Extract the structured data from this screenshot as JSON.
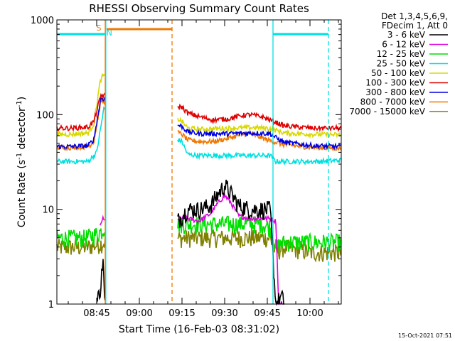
{
  "chart_data": {
    "type": "line",
    "title": "RHESSI Observing Summary Count Rates",
    "xlabel": "Start Time (16-Feb-03 08:31:02)",
    "ylabel": "Count Rate (s",
    "ylabel_sup1": "-1",
    "ylabel_mid": " detector",
    "ylabel_sup2": "-1",
    "ylabel_end": ")",
    "yscale": "log",
    "ylim": [
      1,
      1000
    ],
    "xlim_minutes": [
      0,
      100
    ],
    "x_ticks": [
      {
        "label": "08:45",
        "min": 14
      },
      {
        "label": "09:00",
        "min": 29
      },
      {
        "label": "09:15",
        "min": 44
      },
      {
        "label": "09:30",
        "min": 59
      },
      {
        "label": "09:45",
        "min": 74
      },
      {
        "label": "10:00",
        "min": 89
      }
    ],
    "y_ticks": [
      {
        "label": "1",
        "value": 1
      },
      {
        "label": "10",
        "value": 10
      },
      {
        "label": "100",
        "value": 100
      },
      {
        "label": "1000",
        "value": 1000
      }
    ],
    "header": [
      "Det 1,3,4,5,6,9,",
      "FDecim 1, Att 0"
    ],
    "legend": [
      {
        "label": "3 - 6 keV",
        "color": "#000000"
      },
      {
        "label": "6 - 12 keV",
        "color": "#e000e0"
      },
      {
        "label": "12 - 25 keV",
        "color": "#00e000"
      },
      {
        "label": "25 - 50 keV",
        "color": "#00e0e0"
      },
      {
        "label": "50 - 100 keV",
        "color": "#d8d800"
      },
      {
        "label": "100 - 300 keV",
        "color": "#e00000"
      },
      {
        "label": "300 - 800 keV",
        "color": "#0000e0"
      },
      {
        "label": "800 - 7000 keV",
        "color": "#f07800"
      },
      {
        "label": "7000 - 15000 keV",
        "color": "#808000"
      }
    ],
    "segments": [
      [
        0,
        17
      ],
      [
        42.5,
        100
      ]
    ],
    "series": [
      {
        "name": "3 - 6 keV",
        "color": "#000000",
        "points": [
          [
            14,
            1.0
          ],
          [
            15.5,
            1.6
          ],
          [
            16.2,
            3.2
          ],
          [
            16.8,
            1.0
          ],
          [
            46,
            10
          ],
          [
            50,
            10
          ],
          [
            54,
            11
          ],
          [
            57,
            15
          ],
          [
            59,
            18
          ],
          [
            61,
            15
          ],
          [
            64,
            11
          ],
          [
            68,
            10
          ],
          [
            72,
            10
          ],
          [
            75,
            10
          ],
          [
            77,
            1.0
          ],
          [
            79,
            1.2
          ],
          [
            80,
            1.0
          ]
        ]
      },
      {
        "name": "6 - 12 keV",
        "color": "#e000e0",
        "points": [
          [
            15.2,
            6.5
          ],
          [
            16,
            8
          ],
          [
            16.8,
            7.5
          ],
          [
            46,
            8
          ],
          [
            50,
            7.5
          ],
          [
            54,
            9
          ],
          [
            57,
            12
          ],
          [
            59,
            14
          ],
          [
            61,
            12
          ],
          [
            64,
            8.5
          ],
          [
            68,
            8
          ],
          [
            72,
            8
          ],
          [
            75,
            8
          ],
          [
            77,
            7.5
          ],
          [
            78,
            1.0
          ],
          [
            80,
            1.0
          ]
        ]
      },
      {
        "name": "12 - 25 keV",
        "color": "#00e000",
        "points": [
          [
            0,
            5
          ],
          [
            5,
            5
          ],
          [
            10,
            5
          ],
          [
            14,
            5.5
          ],
          [
            16,
            6
          ],
          [
            16.8,
            6.5
          ],
          [
            46,
            7
          ],
          [
            55,
            7
          ],
          [
            65,
            7
          ],
          [
            72,
            7
          ],
          [
            75,
            6.5
          ],
          [
            77,
            4
          ],
          [
            80,
            4.5
          ],
          [
            90,
            4.5
          ],
          [
            100,
            4.5
          ]
        ]
      },
      {
        "name": "25 - 50 keV",
        "color": "#00e0e0",
        "points": [
          [
            0,
            32
          ],
          [
            5,
            32
          ],
          [
            11,
            32
          ],
          [
            14,
            40
          ],
          [
            16.5,
            115
          ],
          [
            44,
            52
          ],
          [
            46,
            38
          ],
          [
            50,
            37
          ],
          [
            60,
            37
          ],
          [
            70,
            37
          ],
          [
            75,
            37
          ],
          [
            77,
            32
          ],
          [
            85,
            32
          ],
          [
            92,
            32
          ],
          [
            100,
            33
          ]
        ]
      },
      {
        "name": "50 - 100 keV",
        "color": "#d8d800",
        "points": [
          [
            0,
            62
          ],
          [
            5,
            62
          ],
          [
            11,
            64
          ],
          [
            13,
            80
          ],
          [
            15.2,
            220
          ],
          [
            16.2,
            260
          ],
          [
            44,
            85
          ],
          [
            46,
            72
          ],
          [
            50,
            70
          ],
          [
            60,
            72
          ],
          [
            70,
            73
          ],
          [
            74,
            72
          ],
          [
            76,
            70
          ],
          [
            80,
            64
          ],
          [
            90,
            62
          ],
          [
            100,
            61
          ]
        ]
      },
      {
        "name": "100 - 300 keV",
        "color": "#e00000",
        "points": [
          [
            0,
            72
          ],
          [
            5,
            72
          ],
          [
            11,
            74
          ],
          [
            13,
            85
          ],
          [
            15.5,
            160
          ],
          [
            44,
            120
          ],
          [
            46,
            104
          ],
          [
            50,
            95
          ],
          [
            55,
            88
          ],
          [
            60,
            90
          ],
          [
            65,
            98
          ],
          [
            68,
            100
          ],
          [
            72,
            95
          ],
          [
            75,
            88
          ],
          [
            80,
            76
          ],
          [
            90,
            72
          ],
          [
            100,
            72
          ]
        ]
      },
      {
        "name": "300 - 800 keV",
        "color": "#0000e0",
        "points": [
          [
            0,
            46
          ],
          [
            5,
            46
          ],
          [
            11,
            47
          ],
          [
            13,
            55
          ],
          [
            15.5,
            150
          ],
          [
            44,
            75
          ],
          [
            46,
            66
          ],
          [
            50,
            63
          ],
          [
            60,
            63
          ],
          [
            70,
            64
          ],
          [
            75,
            63
          ],
          [
            77,
            57
          ],
          [
            80,
            51
          ],
          [
            90,
            47
          ],
          [
            100,
            46
          ]
        ]
      },
      {
        "name": "800 - 7000 keV",
        "color": "#f07800",
        "points": [
          [
            0,
            45
          ],
          [
            5,
            45
          ],
          [
            11,
            46
          ],
          [
            13,
            52
          ],
          [
            15.5,
            140
          ],
          [
            44,
            62
          ],
          [
            46,
            54
          ],
          [
            50,
            52
          ],
          [
            55,
            52
          ],
          [
            60,
            56
          ],
          [
            65,
            62
          ],
          [
            68,
            63
          ],
          [
            72,
            57
          ],
          [
            75,
            53
          ],
          [
            80,
            48
          ],
          [
            90,
            45
          ],
          [
            100,
            44
          ]
        ]
      },
      {
        "name": "7000 - 15000 keV",
        "color": "#808000",
        "points": [
          [
            0,
            4
          ],
          [
            5,
            4
          ],
          [
            10,
            4
          ],
          [
            14,
            4.2
          ],
          [
            16.8,
            4.5
          ],
          [
            46,
            5
          ],
          [
            55,
            5
          ],
          [
            65,
            5
          ],
          [
            72,
            5
          ],
          [
            75,
            5
          ],
          [
            77,
            3.5
          ],
          [
            80,
            4
          ],
          [
            90,
            3.5
          ],
          [
            100,
            3.5
          ]
        ]
      }
    ],
    "markers": [
      {
        "type": "saa_start",
        "label": "S",
        "color": "#f07800",
        "min": 17,
        "style": "solid"
      },
      {
        "type": "night_end",
        "label": "N",
        "color": "#00e0e0",
        "min": 17.2,
        "style": "solid"
      },
      {
        "type": "saa_end",
        "label": "",
        "color": "#f07800",
        "min": 40.5,
        "style": "dashed"
      },
      {
        "type": "night_start",
        "label": "",
        "color": "#00e0e0",
        "min": 76,
        "style": "solid"
      },
      {
        "type": "night_end2",
        "label": "",
        "color": "#00e0e0",
        "min": 95.5,
        "style": "dashed"
      }
    ],
    "bars": [
      {
        "name": "night",
        "color": "#00e0e0",
        "ranges": [
          [
            0,
            17
          ],
          [
            76,
            95.5
          ]
        ]
      },
      {
        "name": "saa",
        "color": "#f07800",
        "ranges": [
          [
            17.5,
            40.5
          ]
        ]
      }
    ]
  },
  "footer_date": "15-Oct-2021 07:51"
}
